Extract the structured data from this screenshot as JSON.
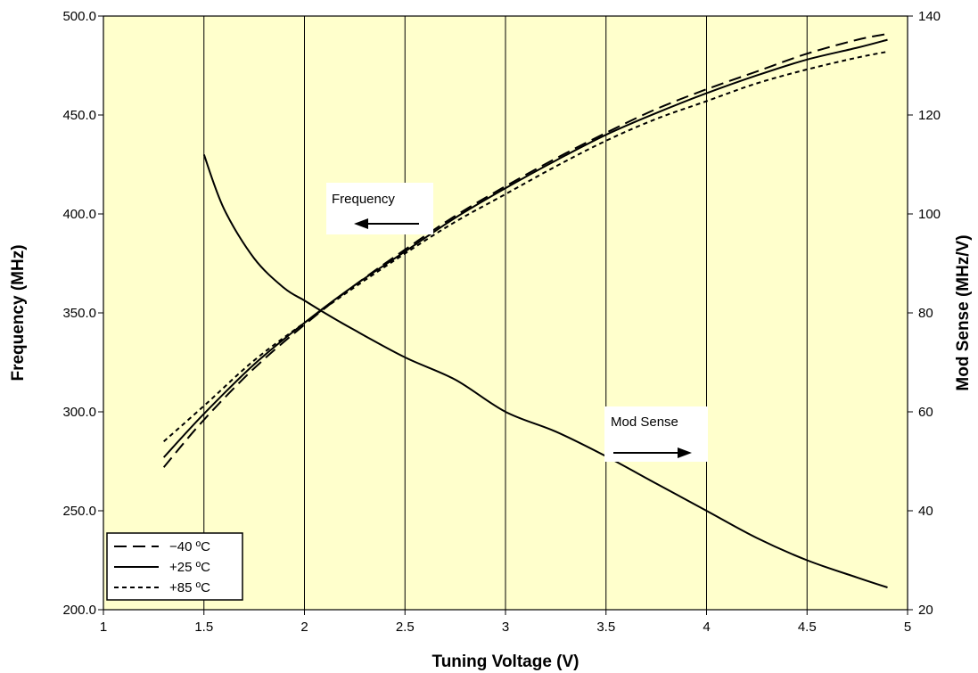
{
  "chart_data": {
    "type": "line",
    "title": "",
    "xlabel": "Tuning Voltage (V)",
    "ylabel": "Frequency (MHz)",
    "y2label": "Mod Sense (MHz/V)",
    "xlim": [
      1,
      5
    ],
    "ylim": [
      200,
      500
    ],
    "y2lim": [
      20,
      140
    ],
    "grid": "vertical",
    "legend_position": "bottom-left",
    "background_color": "#ffffcc",
    "line_color": "#000000",
    "x_ticks": [
      "1",
      "1.5",
      "2",
      "2.5",
      "3",
      "3.5",
      "4",
      "4.5",
      "5"
    ],
    "y_ticks": [
      "200.0",
      "250.0",
      "300.0",
      "350.0",
      "400.0",
      "450.0",
      "500.0"
    ],
    "y2_ticks": [
      "20",
      "40",
      "60",
      "80",
      "100",
      "120",
      "140"
    ],
    "series": [
      {
        "name": "−40 ºC",
        "axis": "left",
        "dash": "dashed",
        "x": [
          1.3,
          1.5,
          1.75,
          2.0,
          2.25,
          2.5,
          2.75,
          3.0,
          3.25,
          3.5,
          3.75,
          4.0,
          4.25,
          4.5,
          4.75,
          4.9
        ],
        "y": [
          272,
          296,
          322,
          344,
          364,
          382,
          399,
          414,
          428,
          441,
          453,
          463,
          472,
          481,
          488,
          491
        ]
      },
      {
        "name": "+25 ºC",
        "axis": "left",
        "dash": "solid",
        "x": [
          1.3,
          1.5,
          1.75,
          2.0,
          2.25,
          2.5,
          2.75,
          3.0,
          3.25,
          3.5,
          3.75,
          4.0,
          4.25,
          4.5,
          4.75,
          4.9
        ],
        "y": [
          277,
          299,
          324,
          345,
          364,
          381,
          398,
          413,
          427,
          440,
          451,
          461,
          470,
          478,
          484,
          488
        ]
      },
      {
        "name": "+85 ºC",
        "axis": "left",
        "dash": "dotted",
        "x": [
          1.3,
          1.5,
          1.75,
          2.0,
          2.25,
          2.5,
          2.75,
          3.0,
          3.25,
          3.5,
          3.75,
          4.0,
          4.25,
          4.5,
          4.75,
          4.9
        ],
        "y": [
          285,
          303,
          326,
          345,
          363,
          380,
          396,
          410,
          424,
          437,
          448,
          457,
          466,
          473,
          479,
          482
        ]
      },
      {
        "name": "",
        "axis": "right",
        "dash": "solid",
        "x": [
          1.5,
          1.6,
          1.75,
          1.9,
          2.0,
          2.1,
          2.25,
          2.5,
          2.75,
          3.0,
          3.25,
          3.5,
          3.75,
          4.0,
          4.25,
          4.5,
          4.75,
          4.9
        ],
        "y": [
          112,
          101,
          91,
          85,
          82.5,
          80,
          76.5,
          71,
          66.5,
          60,
          56,
          51,
          45.5,
          40,
          34.5,
          30,
          26.5,
          24.5
        ]
      }
    ],
    "annotations": [
      {
        "text": "Frequency",
        "arrow": "left"
      },
      {
        "text": "Mod Sense",
        "arrow": "right"
      }
    ]
  }
}
